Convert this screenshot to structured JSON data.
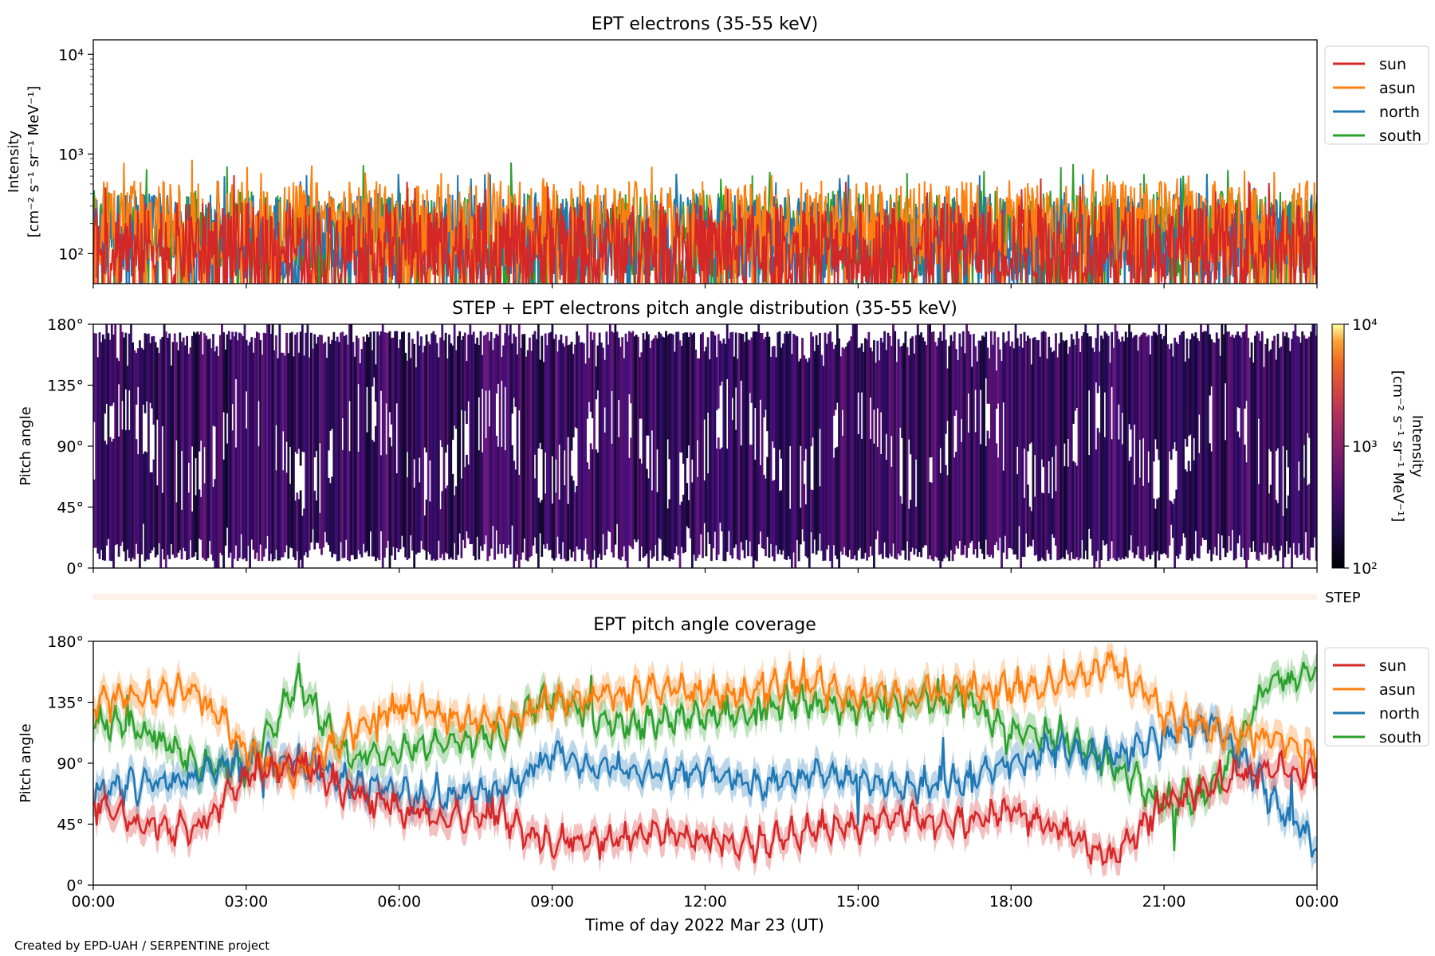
{
  "figure": {
    "footer": "Created by EPD-UAH / SERPENTINE project",
    "xlabel": "Time of day 2022 Mar 23 (UT)",
    "xticks": [
      "00:00",
      "03:00",
      "06:00",
      "09:00",
      "12:00",
      "15:00",
      "18:00",
      "21:00",
      "00:00"
    ]
  },
  "colors": {
    "sun": "#d62728",
    "asun": "#ff7f0e",
    "north": "#1f77b4",
    "south": "#2ca02c"
  },
  "chart_data": [
    {
      "type": "line",
      "title": "EPT electrons (35-55 keV)",
      "ylabel_line1": "Intensity",
      "ylabel_line2": "[cm⁻² s⁻¹ sr⁻¹ MeV⁻¹]",
      "yscale": "log",
      "ylim": [
        50,
        14000
      ],
      "yticks": [
        {
          "value": 100,
          "label": "10²"
        },
        {
          "value": 1000,
          "label": "10³"
        },
        {
          "value": 10000,
          "label": "10⁴"
        }
      ],
      "xlim_hours": [
        0,
        24
      ],
      "legend": {
        "placement": "outside-right-top",
        "entries": [
          "sun",
          "asun",
          "north",
          "south"
        ]
      },
      "series": [
        {
          "name": "sun",
          "key": "sun",
          "typical": 120,
          "peaks": [
            650,
            600,
            550,
            600
          ]
        },
        {
          "name": "asun",
          "key": "asun",
          "typical": 200,
          "peaks": [
            880,
            750,
            680,
            720
          ]
        },
        {
          "name": "north",
          "key": "north",
          "typical": 150,
          "peaks": [
            700,
            650,
            720,
            650
          ]
        },
        {
          "name": "south",
          "key": "south",
          "typical": 160,
          "peaks": [
            800,
            880,
            700,
            860
          ]
        }
      ],
      "draw_order": [
        "south",
        "north",
        "asun",
        "sun"
      ]
    },
    {
      "type": "heatmap",
      "title": "STEP + EPT electrons pitch angle distribution (35-55 keV)",
      "ylabel": "Pitch angle",
      "ylim": [
        0,
        180
      ],
      "yticks": [
        "0°",
        "45°",
        "90°",
        "135°",
        "180°"
      ],
      "xlim_hours": [
        0,
        24
      ],
      "colorbar": {
        "label_line1": "Intensity",
        "label_line2": "[cm⁻² s⁻¹ sr⁻¹ MeV⁻¹]",
        "scale": "log",
        "range": [
          100,
          10000
        ],
        "ticks": [
          "10²",
          "10³",
          "10⁴"
        ],
        "colormap": "inferno"
      },
      "typical_intensity": 300
    },
    {
      "type": "heatmap",
      "label": "STEP",
      "xlim_hours": [
        0,
        24
      ]
    },
    {
      "type": "line",
      "title": "EPT pitch angle coverage",
      "ylabel": "Pitch angle",
      "ylim": [
        0,
        180
      ],
      "yticks": [
        "0°",
        "45°",
        "90°",
        "135°",
        "180°"
      ],
      "xlim_hours": [
        0,
        24
      ],
      "legend": {
        "placement": "outside-right-top",
        "entries": [
          "sun",
          "asun",
          "north",
          "south"
        ]
      },
      "series": [
        {
          "name": "sun",
          "key": "sun",
          "x_hours": [
            0,
            1,
            2,
            3,
            4,
            5,
            6,
            7,
            8,
            9,
            10,
            11,
            12,
            13,
            14,
            15,
            16,
            17,
            18,
            19,
            20,
            21,
            22,
            23,
            24
          ],
          "values": [
            60,
            45,
            40,
            80,
            90,
            70,
            55,
            50,
            50,
            30,
            35,
            40,
            35,
            30,
            40,
            45,
            50,
            45,
            55,
            40,
            20,
            60,
            75,
            85,
            80
          ]
        },
        {
          "name": "asun",
          "key": "asun",
          "x_hours": [
            0,
            1,
            2,
            3,
            4,
            5,
            6,
            7,
            8,
            9,
            10,
            11,
            12,
            13,
            14,
            15,
            16,
            17,
            18,
            19,
            20,
            21,
            22,
            23,
            24
          ],
          "values": [
            135,
            140,
            145,
            100,
            80,
            115,
            130,
            125,
            120,
            135,
            140,
            145,
            140,
            145,
            150,
            140,
            140,
            145,
            145,
            150,
            165,
            125,
            115,
            110,
            100
          ]
        },
        {
          "name": "north",
          "key": "north",
          "x_hours": [
            0,
            1,
            2,
            3,
            4,
            5,
            6,
            7,
            8,
            9,
            10,
            11,
            12,
            13,
            14,
            15,
            16,
            17,
            18,
            19,
            20,
            21,
            22,
            23,
            24
          ],
          "values": [
            70,
            75,
            80,
            95,
            90,
            75,
            70,
            65,
            70,
            95,
            85,
            80,
            85,
            75,
            80,
            80,
            70,
            75,
            90,
            100,
            95,
            110,
            120,
            70,
            30
          ]
        },
        {
          "name": "south",
          "key": "south",
          "x_hours": [
            0,
            1,
            2,
            3,
            4,
            5,
            6,
            7,
            8,
            9,
            10,
            11,
            12,
            13,
            14,
            15,
            16,
            17,
            18,
            19,
            20,
            21,
            22,
            23,
            24
          ],
          "values": [
            120,
            115,
            90,
            85,
            150,
            95,
            100,
            105,
            110,
            140,
            120,
            120,
            125,
            130,
            135,
            130,
            135,
            140,
            115,
            110,
            90,
            60,
            70,
            145,
            160
          ]
        }
      ],
      "band_width_deg": 10
    }
  ]
}
